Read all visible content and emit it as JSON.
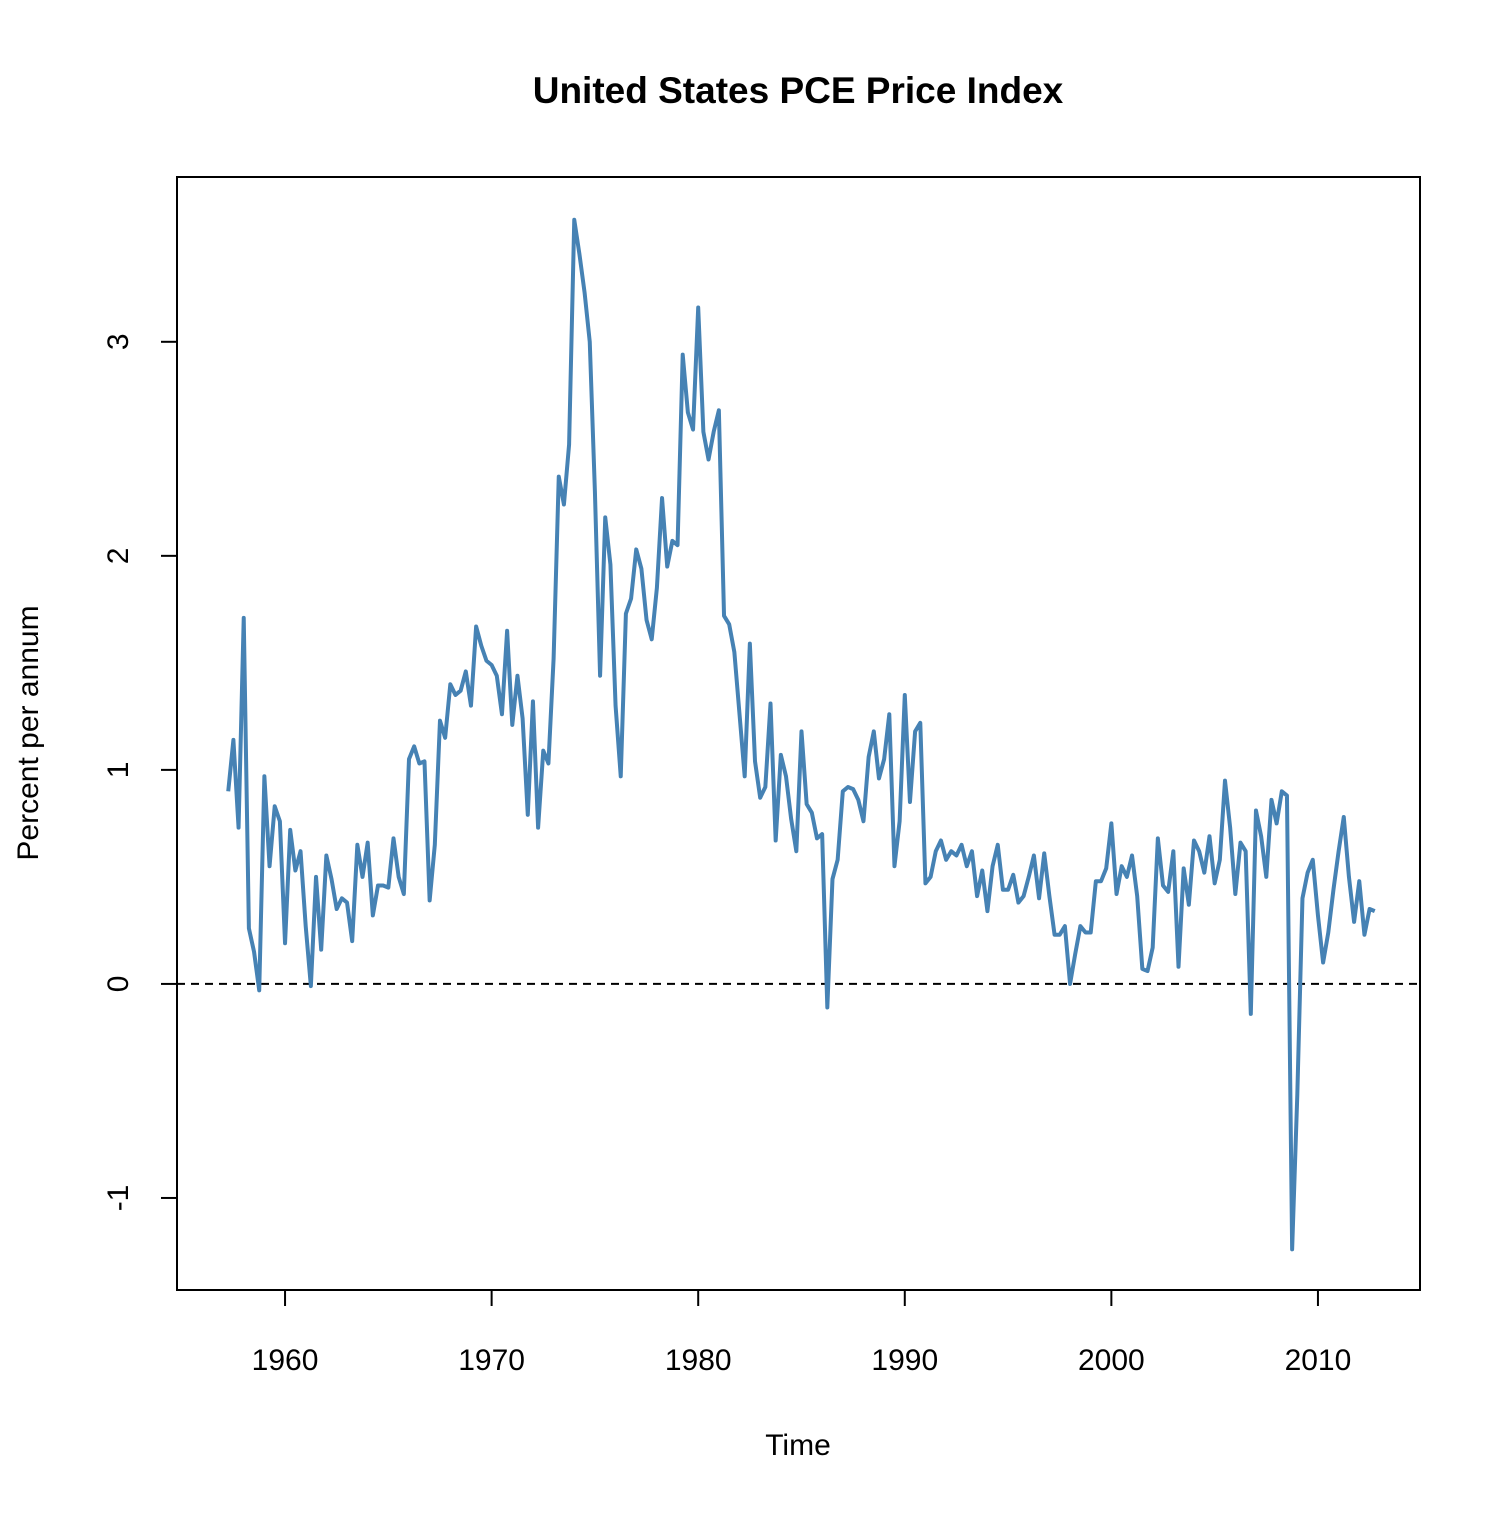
{
  "chart_data": {
    "type": "line",
    "title": "United States PCE Price Index",
    "x_label": "Time",
    "y_label": "Percent per annum",
    "xlim": [
      1954.77,
      2014.94
    ],
    "ylim": [
      -1.43,
      3.77
    ],
    "xticks": [
      1960,
      1970,
      1980,
      1990,
      2000,
      2010
    ],
    "yticks": [
      -1,
      0,
      1,
      2,
      3
    ],
    "reference_line": 0,
    "series": [
      {
        "color": "#4682b4",
        "x": [
          1957.25,
          1957.5,
          1957.75,
          1958,
          1958.25,
          1958.5,
          1958.75,
          1959,
          1959.25,
          1959.5,
          1959.75,
          1960,
          1960.25,
          1960.5,
          1960.75,
          1961,
          1961.25,
          1961.5,
          1961.75,
          1962,
          1962.25,
          1962.5,
          1962.75,
          1963,
          1963.25,
          1963.5,
          1963.75,
          1964,
          1964.25,
          1964.5,
          1964.75,
          1965,
          1965.25,
          1965.5,
          1965.75,
          1966,
          1966.25,
          1966.5,
          1966.75,
          1967,
          1967.25,
          1967.5,
          1967.75,
          1968,
          1968.25,
          1968.5,
          1968.75,
          1969,
          1969.25,
          1969.5,
          1969.75,
          1970,
          1970.25,
          1970.5,
          1970.75,
          1971,
          1971.25,
          1971.5,
          1971.75,
          1972,
          1972.25,
          1972.5,
          1972.75,
          1973,
          1973.25,
          1973.5,
          1973.75,
          1974,
          1974.25,
          1974.5,
          1974.75,
          1975,
          1975.25,
          1975.5,
          1975.75,
          1976,
          1976.25,
          1976.5,
          1976.75,
          1977,
          1977.25,
          1977.5,
          1977.75,
          1978,
          1978.25,
          1978.5,
          1978.75,
          1979,
          1979.25,
          1979.5,
          1979.75,
          1980,
          1980.25,
          1980.5,
          1980.75,
          1981,
          1981.25,
          1981.5,
          1981.75,
          1982,
          1982.25,
          1982.5,
          1982.75,
          1983,
          1983.25,
          1983.5,
          1983.75,
          1984,
          1984.25,
          1984.5,
          1984.75,
          1985,
          1985.25,
          1985.5,
          1985.75,
          1986,
          1986.25,
          1986.5,
          1986.75,
          1987,
          1987.25,
          1987.5,
          1987.75,
          1988,
          1988.25,
          1988.5,
          1988.75,
          1989,
          1989.25,
          1989.5,
          1989.75,
          1990,
          1990.25,
          1990.5,
          1990.75,
          1991,
          1991.25,
          1991.5,
          1991.75,
          1992,
          1992.25,
          1992.5,
          1992.75,
          1993,
          1993.25,
          1993.5,
          1993.75,
          1994,
          1994.25,
          1994.5,
          1994.75,
          1995,
          1995.25,
          1995.5,
          1995.75,
          1996,
          1996.25,
          1996.5,
          1996.75,
          1997,
          1997.25,
          1997.5,
          1997.75,
          1998,
          1998.25,
          1998.5,
          1998.75,
          1999,
          1999.25,
          1999.5,
          1999.75,
          2000,
          2000.25,
          2000.5,
          2000.75,
          2001,
          2001.25,
          2001.5,
          2001.75,
          2002,
          2002.25,
          2002.5,
          2002.75,
          2003,
          2003.25,
          2003.5,
          2003.75,
          2004,
          2004.25,
          2004.5,
          2004.75,
          2005,
          2005.25,
          2005.5,
          2005.75,
          2006,
          2006.25,
          2006.5,
          2006.75,
          2007,
          2007.25,
          2007.5,
          2007.75,
          2008,
          2008.25,
          2008.5,
          2008.75,
          2009,
          2009.25,
          2009.5,
          2009.75,
          2010,
          2010.25,
          2010.5,
          2010.75,
          2011,
          2011.25,
          2011.5,
          2011.75,
          2012,
          2012.25,
          2012.5,
          2012.75
        ],
        "values": [
          0.9,
          1.14,
          0.73,
          1.71,
          0.26,
          0.15,
          -0.03,
          0.97,
          0.55,
          0.83,
          0.76,
          0.19,
          0.72,
          0.53,
          0.62,
          0.27,
          -0.01,
          0.5,
          0.16,
          0.6,
          0.49,
          0.35,
          0.4,
          0.38,
          0.2,
          0.65,
          0.5,
          0.66,
          0.32,
          0.46,
          0.46,
          0.45,
          0.68,
          0.5,
          0.42,
          1.05,
          1.11,
          1.03,
          1.04,
          0.39,
          0.65,
          1.23,
          1.15,
          1.4,
          1.35,
          1.37,
          1.46,
          1.3,
          1.67,
          1.58,
          1.51,
          1.49,
          1.44,
          1.26,
          1.65,
          1.21,
          1.44,
          1.24,
          0.79,
          1.32,
          0.73,
          1.09,
          1.03,
          1.52,
          2.37,
          2.24,
          2.52,
          3.57,
          3.41,
          3.23,
          3.0,
          2.3,
          1.44,
          2.18,
          1.96,
          1.3,
          0.97,
          1.73,
          1.8,
          2.03,
          1.94,
          1.7,
          1.61,
          1.85,
          2.27,
          1.95,
          2.07,
          2.05,
          2.94,
          2.67,
          2.59,
          3.16,
          2.58,
          2.45,
          2.58,
          2.68,
          1.72,
          1.68,
          1.55,
          1.26,
          0.97,
          1.59,
          1.04,
          0.87,
          0.92,
          1.31,
          0.67,
          1.07,
          0.97,
          0.77,
          0.62,
          1.18,
          0.84,
          0.8,
          0.68,
          0.7,
          -0.11,
          0.49,
          0.58,
          0.9,
          0.92,
          0.91,
          0.86,
          0.76,
          1.06,
          1.18,
          0.96,
          1.05,
          1.26,
          0.55,
          0.76,
          1.35,
          0.85,
          1.18,
          1.22,
          0.47,
          0.5,
          0.62,
          0.67,
          0.58,
          0.62,
          0.6,
          0.65,
          0.55,
          0.62,
          0.41,
          0.53,
          0.34,
          0.55,
          0.65,
          0.44,
          0.44,
          0.51,
          0.38,
          0.41,
          0.5,
          0.6,
          0.4,
          0.61,
          0.41,
          0.23,
          0.23,
          0.27,
          0.0,
          0.14,
          0.27,
          0.24,
          0.24,
          0.48,
          0.48,
          0.54,
          0.75,
          0.42,
          0.55,
          0.5,
          0.6,
          0.41,
          0.07,
          0.06,
          0.17,
          0.68,
          0.46,
          0.43,
          0.62,
          0.08,
          0.54,
          0.37,
          0.67,
          0.62,
          0.52,
          0.69,
          0.47,
          0.58,
          0.95,
          0.73,
          0.42,
          0.66,
          0.62,
          -0.14,
          0.81,
          0.69,
          0.5,
          0.86,
          0.75,
          0.9,
          0.88,
          -1.24,
          -0.52,
          0.4,
          0.52,
          0.58,
          0.32,
          0.1,
          0.24,
          0.44,
          0.62,
          0.78,
          0.5,
          0.29,
          0.48,
          0.23,
          0.35,
          0.34
        ]
      }
    ]
  }
}
